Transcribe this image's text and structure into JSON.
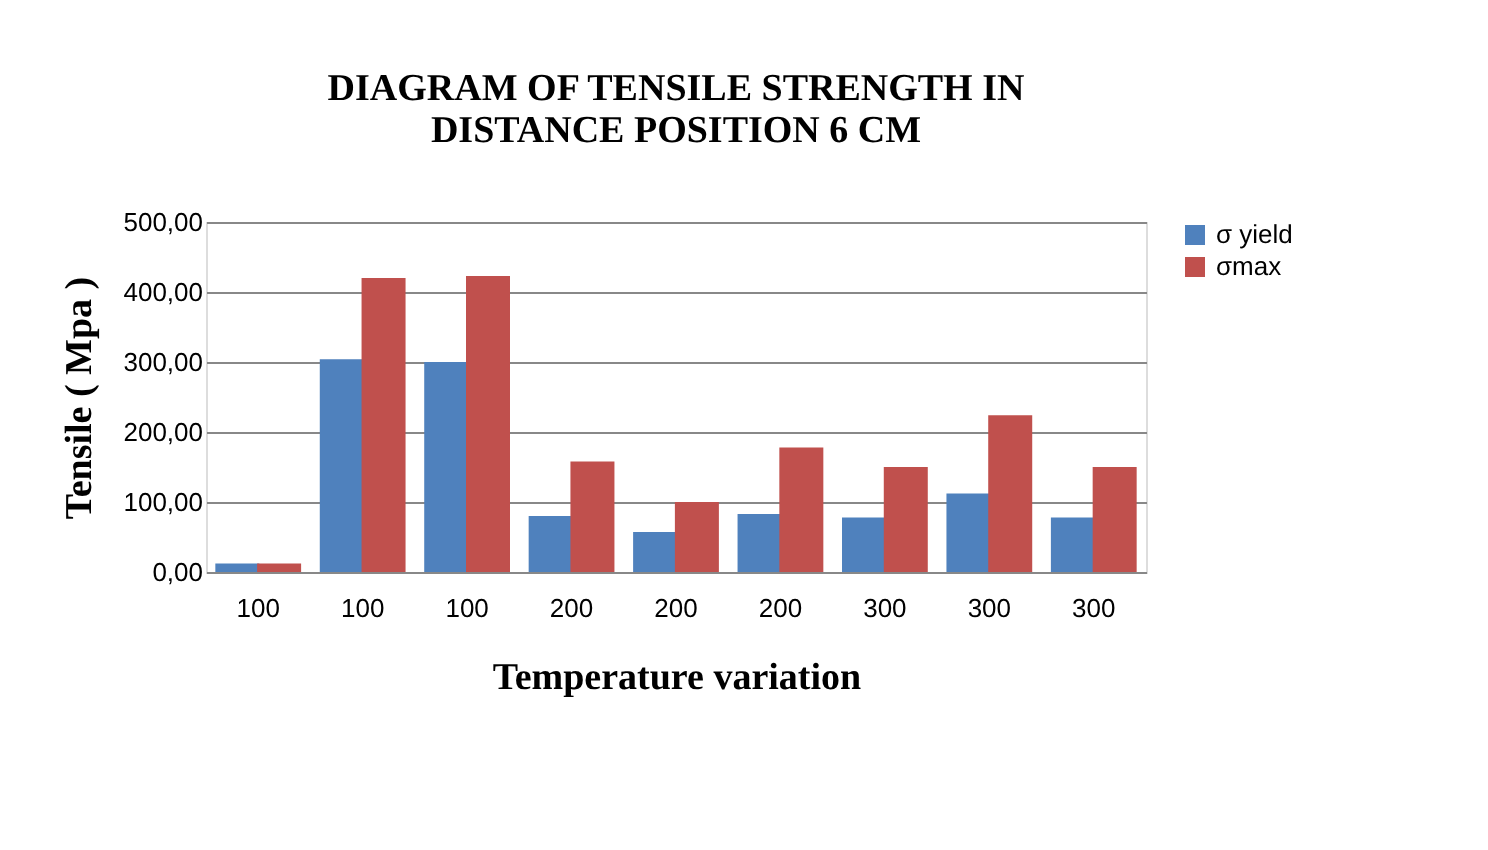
{
  "chart_data": {
    "type": "bar",
    "title": "DIAGRAM OF TENSILE STRENGTH IN\nDISTANCE POSITION 6 CM",
    "xlabel": "Temperature variation",
    "ylabel": "Tensile  ( Mpa )",
    "categories": [
      "100",
      "100",
      "100",
      "200",
      "200",
      "200",
      "300",
      "300",
      "300"
    ],
    "series": [
      {
        "name": "σ yield",
        "color": "#4f81bd",
        "values": [
          12,
          304,
          300,
          80,
          57,
          83,
          78,
          112,
          78
        ]
      },
      {
        "name": "σmax",
        "color": "#c0504d",
        "values": [
          12,
          420,
          423,
          158,
          100,
          178,
          150,
          224,
          150
        ]
      }
    ],
    "ylim": [
      0,
      500
    ],
    "yticks": [
      {
        "value": 0,
        "label": "0,00"
      },
      {
        "value": 100,
        "label": "100,00"
      },
      {
        "value": 200,
        "label": "200,00"
      },
      {
        "value": 300,
        "label": "300,00"
      },
      {
        "value": 400,
        "label": "400,00"
      },
      {
        "value": 500,
        "label": "500,00"
      }
    ],
    "grid": "y",
    "legend": "right"
  }
}
